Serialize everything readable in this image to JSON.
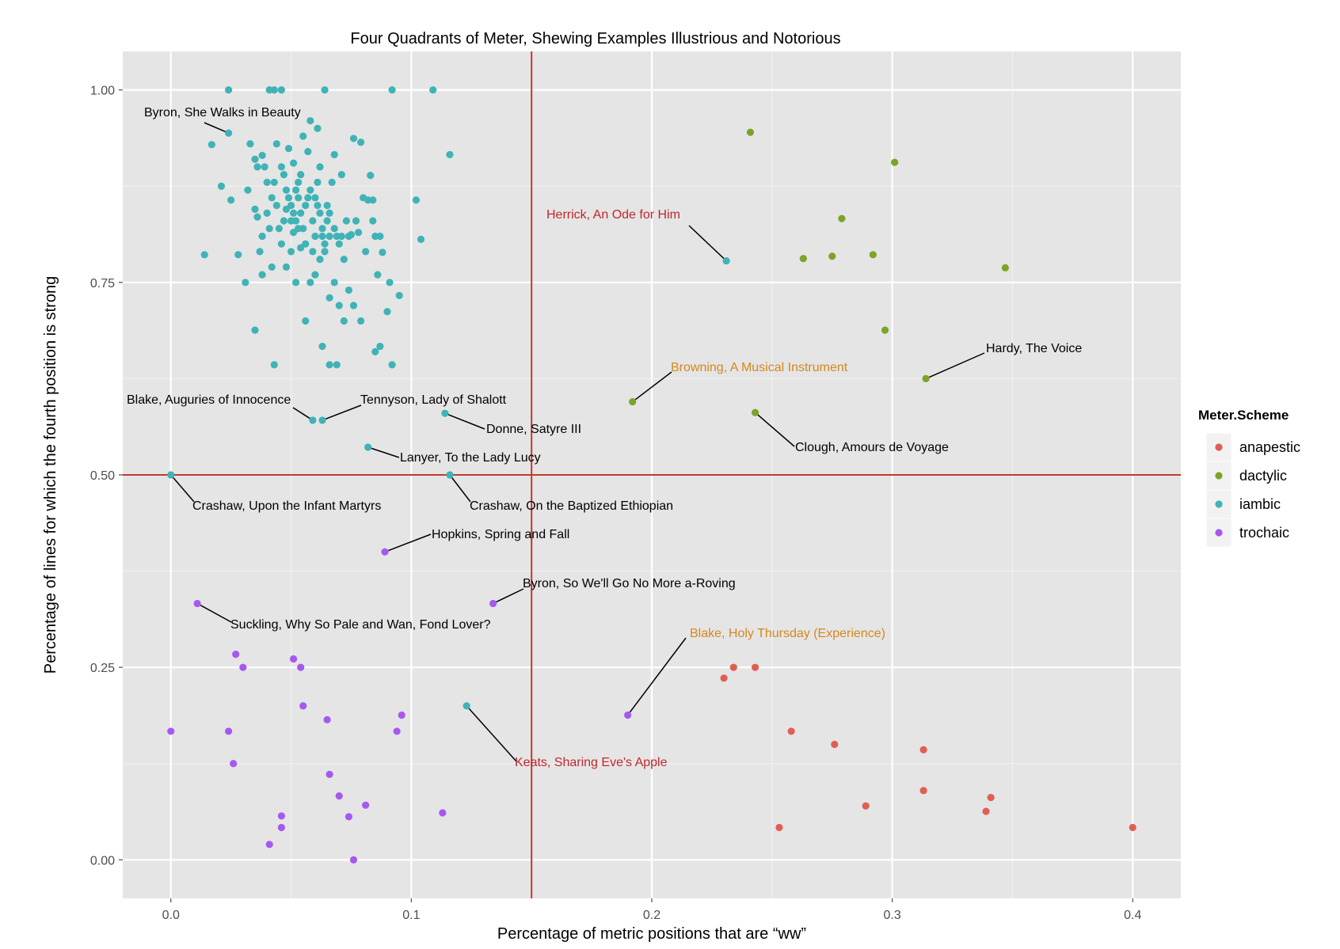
{
  "chart_data": {
    "type": "scatter",
    "title": "Four Quadrants of Meter, Shewing Examples Illustrious and Notorious",
    "xlabel": "Percentage of metric positions that are “ww”",
    "ylabel": "Percentage of lines for which the fourth position is strong",
    "xlim": [
      -0.02,
      0.42
    ],
    "ylim": [
      -0.05,
      1.05
    ],
    "xticks": [
      "0.0",
      "0.1",
      "0.2",
      "0.3",
      "0.4"
    ],
    "yticks": [
      "0.00",
      "0.25",
      "0.50",
      "0.75",
      "1.00"
    ],
    "grid": true,
    "reference_lines": {
      "vertical_x": 0.15,
      "horizontal_y": 0.5,
      "color": "#c0392b"
    },
    "legend": {
      "title": "Meter.Scheme",
      "placement": "right",
      "entries": [
        {
          "name": "anapestic",
          "color": "#e05f52"
        },
        {
          "name": "dactylic",
          "color": "#7ba428"
        },
        {
          "name": "iambic",
          "color": "#3fb3b6"
        },
        {
          "name": "trochaic",
          "color": "#a559f0"
        }
      ]
    },
    "series": [
      {
        "name": "anapestic",
        "points": [
          [
            0.23,
            0.236
          ],
          [
            0.234,
            0.25
          ],
          [
            0.243,
            0.25
          ],
          [
            0.253,
            0.042
          ],
          [
            0.258,
            0.167
          ],
          [
            0.276,
            0.15
          ],
          [
            0.289,
            0.07
          ],
          [
            0.313,
            0.143
          ],
          [
            0.313,
            0.09
          ],
          [
            0.339,
            0.063
          ],
          [
            0.341,
            0.081
          ],
          [
            0.4,
            0.042
          ]
        ]
      },
      {
        "name": "dactylic",
        "points": [
          [
            0.241,
            0.945
          ],
          [
            0.301,
            0.906
          ],
          [
            0.279,
            0.833
          ],
          [
            0.263,
            0.781
          ],
          [
            0.275,
            0.784
          ],
          [
            0.292,
            0.786
          ],
          [
            0.347,
            0.769
          ],
          [
            0.297,
            0.688
          ],
          [
            0.314,
            0.625
          ],
          [
            0.192,
            0.595
          ],
          [
            0.243,
            0.581
          ]
        ]
      },
      {
        "name": "iambic",
        "points": [
          [
            0.024,
            1.0
          ],
          [
            0.041,
            1.0
          ],
          [
            0.043,
            1.0
          ],
          [
            0.046,
            1.0
          ],
          [
            0.064,
            1.0
          ],
          [
            0.092,
            1.0
          ],
          [
            0.109,
            1.0
          ],
          [
            0.024,
            0.944
          ],
          [
            0.017,
            0.929
          ],
          [
            0.021,
            0.875
          ],
          [
            0.025,
            0.857
          ],
          [
            0.014,
            0.786
          ],
          [
            0.028,
            0.786
          ],
          [
            0.031,
            0.75
          ],
          [
            0.033,
            0.93
          ],
          [
            0.035,
            0.91
          ],
          [
            0.036,
            0.9
          ],
          [
            0.038,
            0.915
          ],
          [
            0.039,
            0.9
          ],
          [
            0.04,
            0.88
          ],
          [
            0.032,
            0.87
          ],
          [
            0.035,
            0.845
          ],
          [
            0.036,
            0.835
          ],
          [
            0.038,
            0.81
          ],
          [
            0.037,
            0.79
          ],
          [
            0.042,
            0.86
          ],
          [
            0.043,
            0.88
          ],
          [
            0.044,
            0.93
          ],
          [
            0.046,
            0.9
          ],
          [
            0.047,
            0.89
          ],
          [
            0.048,
            0.87
          ],
          [
            0.049,
            0.86
          ],
          [
            0.05,
            0.85
          ],
          [
            0.051,
            0.84
          ],
          [
            0.052,
            0.83
          ],
          [
            0.053,
            0.86
          ],
          [
            0.053,
            0.88
          ],
          [
            0.054,
            0.84
          ],
          [
            0.055,
            0.82
          ],
          [
            0.056,
            0.85
          ],
          [
            0.057,
            0.86
          ],
          [
            0.058,
            0.87
          ],
          [
            0.059,
            0.83
          ],
          [
            0.06,
            0.81
          ],
          [
            0.061,
            0.85
          ],
          [
            0.062,
            0.84
          ],
          [
            0.063,
            0.82
          ],
          [
            0.064,
            0.8
          ],
          [
            0.065,
            0.83
          ],
          [
            0.066,
            0.81
          ],
          [
            0.067,
            0.88
          ],
          [
            0.068,
            0.916
          ],
          [
            0.069,
            0.81
          ],
          [
            0.071,
            0.89
          ],
          [
            0.072,
            0.78
          ],
          [
            0.074,
            0.81
          ],
          [
            0.075,
            0.812
          ],
          [
            0.076,
            0.937
          ],
          [
            0.078,
            0.815
          ],
          [
            0.079,
            0.932
          ],
          [
            0.082,
            0.857
          ],
          [
            0.083,
            0.889
          ],
          [
            0.084,
            0.857
          ],
          [
            0.085,
            0.81
          ],
          [
            0.086,
            0.76
          ],
          [
            0.087,
            0.81
          ],
          [
            0.088,
            0.789
          ],
          [
            0.058,
            0.96
          ],
          [
            0.055,
            0.94
          ],
          [
            0.057,
            0.92
          ],
          [
            0.061,
            0.95
          ],
          [
            0.049,
            0.924
          ],
          [
            0.051,
            0.905
          ],
          [
            0.045,
            0.82
          ],
          [
            0.046,
            0.8
          ],
          [
            0.048,
            0.77
          ],
          [
            0.05,
            0.79
          ],
          [
            0.052,
            0.75
          ],
          [
            0.054,
            0.795
          ],
          [
            0.056,
            0.7
          ],
          [
            0.058,
            0.75
          ],
          [
            0.06,
            0.76
          ],
          [
            0.062,
            0.78
          ],
          [
            0.064,
            0.79
          ],
          [
            0.066,
            0.73
          ],
          [
            0.068,
            0.75
          ],
          [
            0.07,
            0.72
          ],
          [
            0.072,
            0.7
          ],
          [
            0.074,
            0.74
          ],
          [
            0.076,
            0.72
          ],
          [
            0.079,
            0.7
          ],
          [
            0.081,
            0.79
          ],
          [
            0.085,
            0.66
          ],
          [
            0.087,
            0.667
          ],
          [
            0.09,
            0.712
          ],
          [
            0.091,
            0.75
          ],
          [
            0.092,
            0.643
          ],
          [
            0.095,
            0.733
          ],
          [
            0.102,
            0.857
          ],
          [
            0.104,
            0.806
          ],
          [
            0.116,
            0.916
          ],
          [
            0.035,
            0.688
          ],
          [
            0.043,
            0.643
          ],
          [
            0.063,
            0.667
          ],
          [
            0.066,
            0.643
          ],
          [
            0.069,
            0.643
          ],
          [
            0.042,
            0.77
          ],
          [
            0.038,
            0.76
          ],
          [
            0.04,
            0.84
          ],
          [
            0.041,
            0.82
          ],
          [
            0.044,
            0.85
          ],
          [
            0.047,
            0.83
          ],
          [
            0.048,
            0.845
          ],
          [
            0.05,
            0.83
          ],
          [
            0.051,
            0.815
          ],
          [
            0.052,
            0.87
          ],
          [
            0.053,
            0.82
          ],
          [
            0.054,
            0.89
          ],
          [
            0.056,
            0.8
          ],
          [
            0.059,
            0.79
          ],
          [
            0.06,
            0.86
          ],
          [
            0.061,
            0.88
          ],
          [
            0.062,
            0.9
          ],
          [
            0.063,
            0.81
          ],
          [
            0.065,
            0.85
          ],
          [
            0.066,
            0.84
          ],
          [
            0.068,
            0.82
          ],
          [
            0.07,
            0.8
          ],
          [
            0.071,
            0.81
          ],
          [
            0.073,
            0.83
          ],
          [
            0.077,
            0.83
          ],
          [
            0.08,
            0.86
          ],
          [
            0.084,
            0.83
          ],
          [
            0.231,
            0.778
          ],
          [
            0.059,
            0.571
          ],
          [
            0.063,
            0.571
          ],
          [
            0.114,
            0.58
          ],
          [
            0.082,
            0.536
          ],
          [
            0.0,
            0.5
          ],
          [
            0.116,
            0.5
          ],
          [
            0.123,
            0.2
          ]
        ]
      },
      {
        "name": "trochaic",
        "points": [
          [
            0.089,
            0.4
          ],
          [
            0.011,
            0.333
          ],
          [
            0.134,
            0.333
          ],
          [
            0.19,
            0.188
          ],
          [
            0.027,
            0.267
          ],
          [
            0.03,
            0.25
          ],
          [
            0.051,
            0.261
          ],
          [
            0.054,
            0.25
          ],
          [
            0.055,
            0.2
          ],
          [
            0.065,
            0.182
          ],
          [
            0.096,
            0.188
          ],
          [
            0.094,
            0.167
          ],
          [
            0.0,
            0.167
          ],
          [
            0.024,
            0.167
          ],
          [
            0.026,
            0.125
          ],
          [
            0.066,
            0.111
          ],
          [
            0.07,
            0.083
          ],
          [
            0.081,
            0.071
          ],
          [
            0.074,
            0.056
          ],
          [
            0.046,
            0.057
          ],
          [
            0.046,
            0.042
          ],
          [
            0.041,
            0.02
          ],
          [
            0.076,
            0.0
          ],
          [
            0.113,
            0.061
          ]
        ]
      }
    ],
    "annotations": [
      {
        "text": "Byron, She Walks in Beauty",
        "x": 0.024,
        "y": 0.944,
        "color": "#000000"
      },
      {
        "text": "Herrick, An Ode for Him",
        "x": 0.231,
        "y": 0.778,
        "color": "#c0272d"
      },
      {
        "text": "Browning, A Musical Instrument",
        "x": 0.192,
        "y": 0.595,
        "color": "#d4881e"
      },
      {
        "text": "Hardy, The Voice",
        "x": 0.314,
        "y": 0.625,
        "color": "#000000"
      },
      {
        "text": "Blake, Auguries of Innocence",
        "x": 0.059,
        "y": 0.571,
        "color": "#000000"
      },
      {
        "text": "Tennyson, Lady of Shalott",
        "x": 0.063,
        "y": 0.571,
        "color": "#000000"
      },
      {
        "text": "Donne, Satyre III",
        "x": 0.114,
        "y": 0.58,
        "color": "#000000"
      },
      {
        "text": "Clough, Amours de Voyage",
        "x": 0.243,
        "y": 0.581,
        "color": "#000000"
      },
      {
        "text": "Lanyer, To the Lady Lucy",
        "x": 0.082,
        "y": 0.536,
        "color": "#000000"
      },
      {
        "text": "Crashaw, Upon the Infant Martyrs",
        "x": 0.0,
        "y": 0.5,
        "color": "#000000"
      },
      {
        "text": "Crashaw, On the Baptized Ethiopian",
        "x": 0.116,
        "y": 0.5,
        "color": "#000000"
      },
      {
        "text": "Hopkins, Spring and Fall",
        "x": 0.089,
        "y": 0.4,
        "color": "#000000"
      },
      {
        "text": "Byron, So We'll Go No More a-Roving",
        "x": 0.134,
        "y": 0.333,
        "color": "#000000"
      },
      {
        "text": "Suckling, Why So Pale and Wan, Fond Lover?",
        "x": 0.011,
        "y": 0.333,
        "color": "#000000"
      },
      {
        "text": "Blake, Holy Thursday (Experience)",
        "x": 0.19,
        "y": 0.188,
        "color": "#d4881e"
      },
      {
        "text": "Keats, Sharing Eve's Apple",
        "x": 0.123,
        "y": 0.2,
        "color": "#c0272d"
      }
    ]
  }
}
